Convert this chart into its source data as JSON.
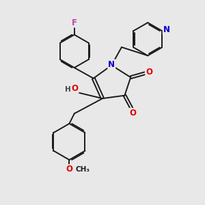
{
  "bg_color": "#e8e8e8",
  "bond_color": "#1a1a1a",
  "atom_colors": {
    "N": "#0000cc",
    "O": "#dd0000",
    "F": "#bb44aa",
    "H": "#444444"
  },
  "bond_width": 1.4,
  "font_size": 8.5,
  "title": ""
}
